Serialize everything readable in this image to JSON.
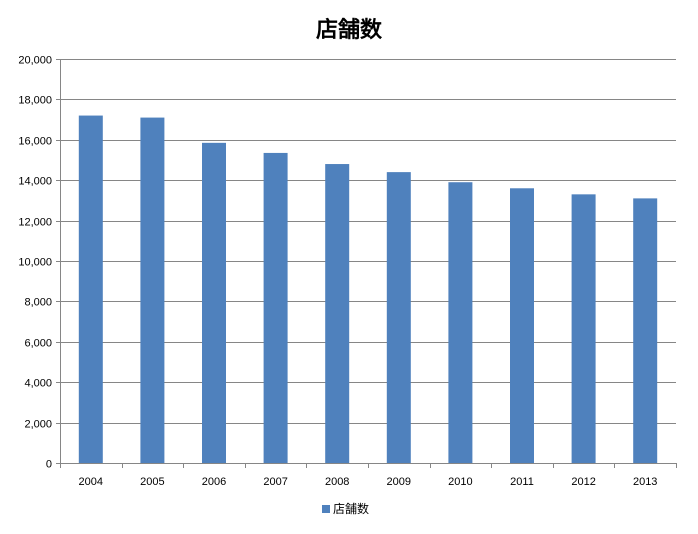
{
  "chart_data": {
    "type": "bar",
    "title": "店舗数",
    "xlabel": "",
    "ylabel": "",
    "categories": [
      "2004",
      "2005",
      "2006",
      "2007",
      "2008",
      "2009",
      "2010",
      "2011",
      "2012",
      "2013"
    ],
    "series": [
      {
        "name": "店舗数",
        "values": [
          17200,
          17100,
          15850,
          15350,
          14800,
          14400,
          13900,
          13600,
          13300,
          13100
        ]
      }
    ],
    "ylim": [
      0,
      20000
    ],
    "yticks": [
      0,
      2000,
      4000,
      6000,
      8000,
      10000,
      12000,
      14000,
      16000,
      18000,
      20000
    ],
    "ytick_labels": [
      "0",
      "2,000",
      "4,000",
      "6,000",
      "8,000",
      "10,000",
      "12,000",
      "14,000",
      "16,000",
      "18,000",
      "20,000"
    ],
    "grid": true,
    "legend_position": "bottom",
    "bar_color": "#4f81bd"
  }
}
